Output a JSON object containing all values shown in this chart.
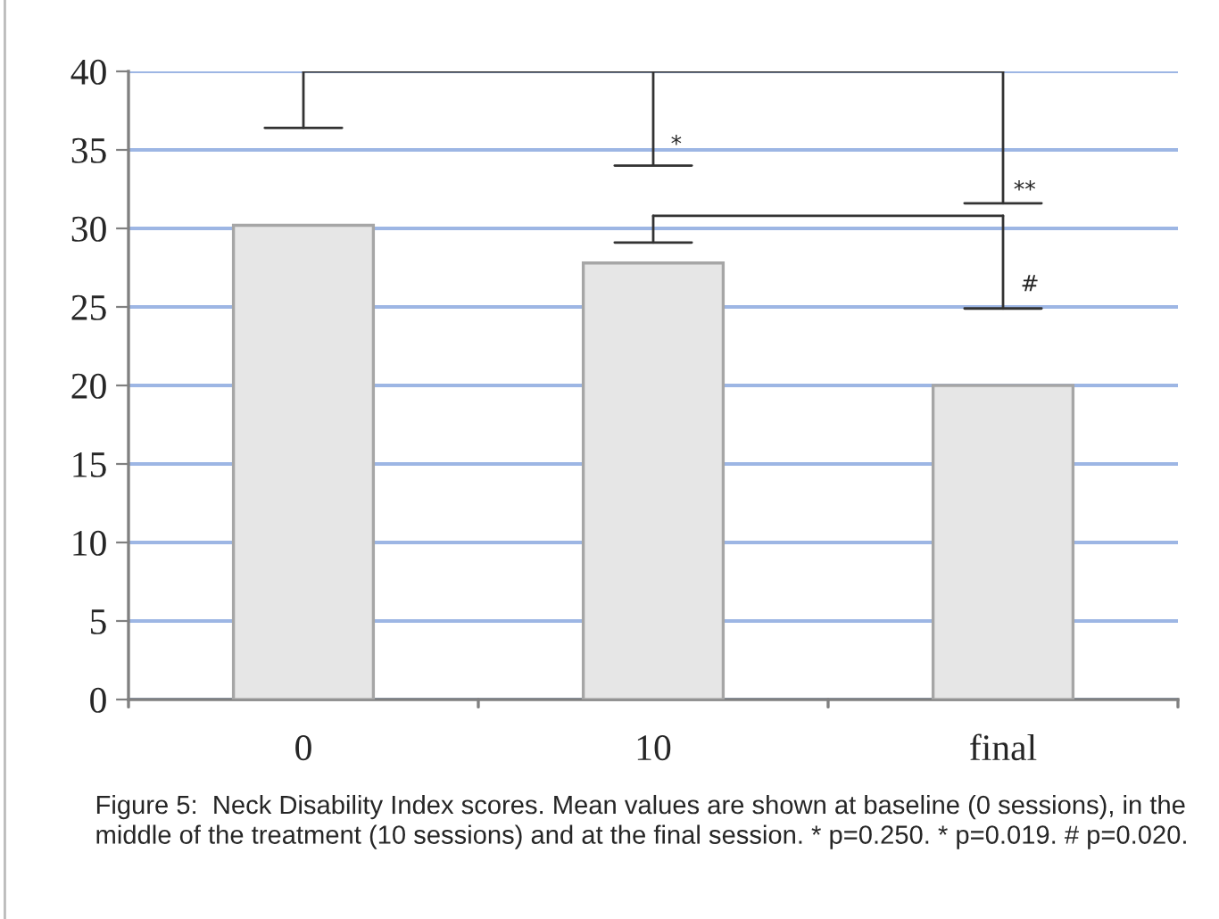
{
  "chart_data": {
    "type": "bar",
    "categories": [
      "0",
      "10",
      "final"
    ],
    "values": [
      30.2,
      27.8,
      20.0
    ],
    "color": "#e6e6e6",
    "ylim": [
      0,
      40
    ],
    "yticks": [
      0,
      5,
      10,
      15,
      20,
      25,
      30,
      35,
      40
    ],
    "grid": "y",
    "annotations": [
      "*",
      "**",
      "#",
      "Figure 5:  Neck Disability Index scores. Mean values are shown at baseline (0 sessions), in the middle of the treatment (10 sessions) and at the final session. * p=0.250. * p=0.019. # p=0.020."
    ]
  }
}
